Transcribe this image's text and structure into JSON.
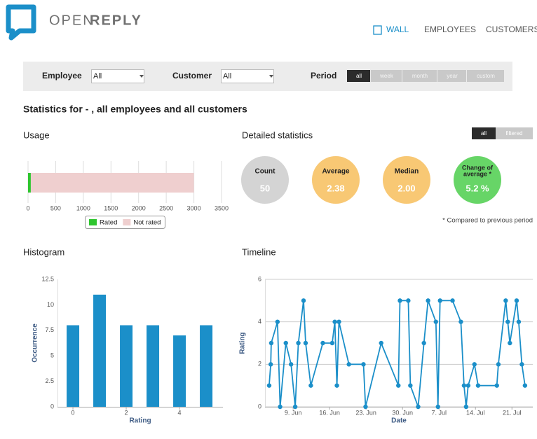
{
  "header": {
    "brand_open": "OPEN",
    "brand_reply": "REPLY",
    "nav": [
      "WALL",
      "EMPLOYEES",
      "CUSTOMERS"
    ]
  },
  "filters": {
    "employee_label": "Employee",
    "employee_value": "All",
    "customer_label": "Customer",
    "customer_value": "All",
    "period_label": "Period",
    "period_options": [
      "all",
      "week",
      "month",
      "year",
      "custom"
    ]
  },
  "title": "Statistics for - , all employees and all customers",
  "detailed": {
    "heading": "Detailed statistics",
    "toggle": [
      "all",
      "filtered"
    ],
    "stats": [
      {
        "label": [
          "Count"
        ],
        "value": "50",
        "color": "#d4d4d4"
      },
      {
        "label": [
          "Average"
        ],
        "value": "2.38",
        "color": "#f8c874"
      },
      {
        "label": [
          "Median"
        ],
        "value": "2.00",
        "color": "#f8c874"
      },
      {
        "label": [
          "Change of",
          "average *"
        ],
        "value": "5.2 %",
        "color": "#67d567"
      }
    ],
    "footnote": "* Compared to previous period"
  },
  "chart_data": [
    {
      "type": "hbar",
      "title": "Usage",
      "categories": [
        null
      ],
      "series": [
        {
          "name": "Rated",
          "color": "#2ec52e",
          "values": [
            50
          ]
        },
        {
          "name": "Not rated",
          "color": "#efcfcf",
          "values": [
            2950
          ]
        }
      ],
      "xlim": [
        0,
        3500
      ],
      "xticks": [
        0,
        500,
        1000,
        1500,
        2000,
        2500,
        3000,
        3500
      ],
      "grid": true,
      "stacked": true,
      "legend": "bottom"
    },
    {
      "type": "bar",
      "title": "Histogram",
      "x_label": "Rating",
      "y_label": "Occurrence",
      "x": [
        0,
        1,
        2,
        3,
        4,
        5
      ],
      "values": [
        8,
        11,
        8,
        8,
        7,
        8
      ],
      "color": "#1b8fc9",
      "xlim": [
        -0.58,
        5.63
      ],
      "xticks": [
        0,
        2,
        4
      ],
      "ylim": [
        0,
        12.5
      ],
      "yticks": [
        0,
        2.5,
        5,
        7.5,
        10,
        12.5
      ],
      "grid": false
    },
    {
      "type": "line",
      "title": "Timeline",
      "x_label": "Date",
      "y_label": "Rating",
      "color": "#1b8fc9",
      "x": [
        4.4,
        4.7,
        4.8,
        6.0,
        6.5,
        7.6,
        8.6,
        9.4,
        10.0,
        11.0,
        11.4,
        12.4,
        14.7,
        16.5,
        17.0,
        17.4,
        17.8,
        19.7,
        22.5,
        22.9,
        25.9,
        29.2,
        29.5,
        31.1,
        31.5,
        33.0,
        34.1,
        34.9,
        36.4,
        36.8,
        37.2,
        39.6,
        41.2,
        41.8,
        42.2,
        42.6,
        43.8,
        44.5,
        48.1,
        48.4,
        49.8,
        50.2,
        50.6,
        51.9,
        52.3,
        52.9,
        53.5
      ],
      "values": [
        1,
        2,
        3,
        4,
        0,
        3,
        2,
        0,
        3,
        5,
        3,
        1,
        3,
        3,
        4,
        1,
        4,
        2,
        2,
        0,
        3,
        1,
        5,
        5,
        1,
        0,
        3,
        5,
        4,
        0,
        5,
        5,
        4,
        1,
        0,
        1,
        2,
        1,
        1,
        2,
        5,
        4,
        3,
        5,
        4,
        2,
        1
      ],
      "xlim": [
        3.6,
        55
      ],
      "xticks": [
        {
          "value": 9,
          "label": "9. Jun"
        },
        {
          "value": 16,
          "label": "16. Jun"
        },
        {
          "value": 23,
          "label": "23. Jun"
        },
        {
          "value": 30,
          "label": "30. Jun"
        },
        {
          "value": 37,
          "label": "7. Jul"
        },
        {
          "value": 44,
          "label": "14. Jul"
        },
        {
          "value": 51,
          "label": "21. Jul"
        }
      ],
      "ylim": [
        0,
        6
      ],
      "yticks": [
        0,
        2,
        4,
        6
      ],
      "grid": true
    }
  ]
}
